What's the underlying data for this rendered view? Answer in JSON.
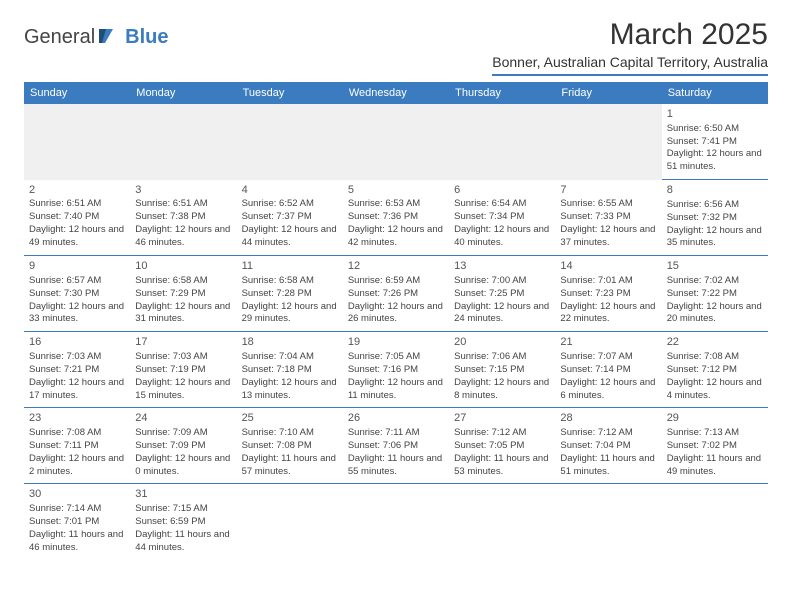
{
  "brand": {
    "part1": "General",
    "part2": "Blue"
  },
  "title": "March 2025",
  "location": "Bonner, Australian Capital Territory, Australia",
  "header_bg": "#3b7bbf",
  "dayNames": [
    "Sunday",
    "Monday",
    "Tuesday",
    "Wednesday",
    "Thursday",
    "Friday",
    "Saturday"
  ],
  "weeks": [
    [
      null,
      null,
      null,
      null,
      null,
      null,
      {
        "n": "1",
        "sr": "6:50 AM",
        "ss": "7:41 PM",
        "dl": "12 hours and 51 minutes."
      }
    ],
    [
      {
        "n": "2",
        "sr": "6:51 AM",
        "ss": "7:40 PM",
        "dl": "12 hours and 49 minutes."
      },
      {
        "n": "3",
        "sr": "6:51 AM",
        "ss": "7:38 PM",
        "dl": "12 hours and 46 minutes."
      },
      {
        "n": "4",
        "sr": "6:52 AM",
        "ss": "7:37 PM",
        "dl": "12 hours and 44 minutes."
      },
      {
        "n": "5",
        "sr": "6:53 AM",
        "ss": "7:36 PM",
        "dl": "12 hours and 42 minutes."
      },
      {
        "n": "6",
        "sr": "6:54 AM",
        "ss": "7:34 PM",
        "dl": "12 hours and 40 minutes."
      },
      {
        "n": "7",
        "sr": "6:55 AM",
        "ss": "7:33 PM",
        "dl": "12 hours and 37 minutes."
      },
      {
        "n": "8",
        "sr": "6:56 AM",
        "ss": "7:32 PM",
        "dl": "12 hours and 35 minutes."
      }
    ],
    [
      {
        "n": "9",
        "sr": "6:57 AM",
        "ss": "7:30 PM",
        "dl": "12 hours and 33 minutes."
      },
      {
        "n": "10",
        "sr": "6:58 AM",
        "ss": "7:29 PM",
        "dl": "12 hours and 31 minutes."
      },
      {
        "n": "11",
        "sr": "6:58 AM",
        "ss": "7:28 PM",
        "dl": "12 hours and 29 minutes."
      },
      {
        "n": "12",
        "sr": "6:59 AM",
        "ss": "7:26 PM",
        "dl": "12 hours and 26 minutes."
      },
      {
        "n": "13",
        "sr": "7:00 AM",
        "ss": "7:25 PM",
        "dl": "12 hours and 24 minutes."
      },
      {
        "n": "14",
        "sr": "7:01 AM",
        "ss": "7:23 PM",
        "dl": "12 hours and 22 minutes."
      },
      {
        "n": "15",
        "sr": "7:02 AM",
        "ss": "7:22 PM",
        "dl": "12 hours and 20 minutes."
      }
    ],
    [
      {
        "n": "16",
        "sr": "7:03 AM",
        "ss": "7:21 PM",
        "dl": "12 hours and 17 minutes."
      },
      {
        "n": "17",
        "sr": "7:03 AM",
        "ss": "7:19 PM",
        "dl": "12 hours and 15 minutes."
      },
      {
        "n": "18",
        "sr": "7:04 AM",
        "ss": "7:18 PM",
        "dl": "12 hours and 13 minutes."
      },
      {
        "n": "19",
        "sr": "7:05 AM",
        "ss": "7:16 PM",
        "dl": "12 hours and 11 minutes."
      },
      {
        "n": "20",
        "sr": "7:06 AM",
        "ss": "7:15 PM",
        "dl": "12 hours and 8 minutes."
      },
      {
        "n": "21",
        "sr": "7:07 AM",
        "ss": "7:14 PM",
        "dl": "12 hours and 6 minutes."
      },
      {
        "n": "22",
        "sr": "7:08 AM",
        "ss": "7:12 PM",
        "dl": "12 hours and 4 minutes."
      }
    ],
    [
      {
        "n": "23",
        "sr": "7:08 AM",
        "ss": "7:11 PM",
        "dl": "12 hours and 2 minutes."
      },
      {
        "n": "24",
        "sr": "7:09 AM",
        "ss": "7:09 PM",
        "dl": "12 hours and 0 minutes."
      },
      {
        "n": "25",
        "sr": "7:10 AM",
        "ss": "7:08 PM",
        "dl": "11 hours and 57 minutes."
      },
      {
        "n": "26",
        "sr": "7:11 AM",
        "ss": "7:06 PM",
        "dl": "11 hours and 55 minutes."
      },
      {
        "n": "27",
        "sr": "7:12 AM",
        "ss": "7:05 PM",
        "dl": "11 hours and 53 minutes."
      },
      {
        "n": "28",
        "sr": "7:12 AM",
        "ss": "7:04 PM",
        "dl": "11 hours and 51 minutes."
      },
      {
        "n": "29",
        "sr": "7:13 AM",
        "ss": "7:02 PM",
        "dl": "11 hours and 49 minutes."
      }
    ],
    [
      {
        "n": "30",
        "sr": "7:14 AM",
        "ss": "7:01 PM",
        "dl": "11 hours and 46 minutes."
      },
      {
        "n": "31",
        "sr": "7:15 AM",
        "ss": "6:59 PM",
        "dl": "11 hours and 44 minutes."
      },
      null,
      null,
      null,
      null,
      null
    ]
  ],
  "labels": {
    "sunrise": "Sunrise:",
    "sunset": "Sunset:",
    "daylight": "Daylight:"
  }
}
